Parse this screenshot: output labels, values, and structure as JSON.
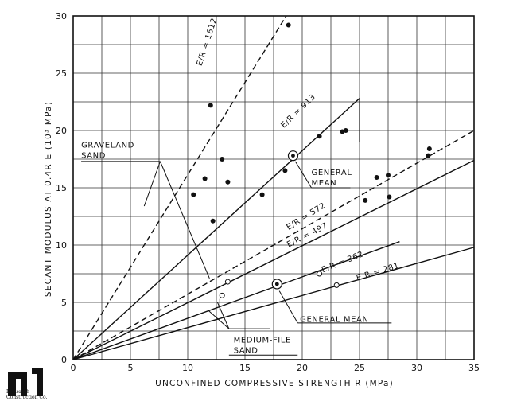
{
  "chart_data": {
    "type": "scatter",
    "xlabel": "UNCONFINED COMPRESSIVE STRENGTH R (MPa)",
    "ylabel": "SECANT MODULUS AT 0.4R E (10³ MPa)",
    "xlim": [
      0,
      35
    ],
    "ylim": [
      0,
      30
    ],
    "xticks": [
      "0",
      "5",
      "10",
      "15",
      "20",
      "25",
      "30",
      "35"
    ],
    "yticks": [
      "0",
      "5",
      "10",
      "15",
      "20",
      "25",
      "30"
    ],
    "grid": true,
    "series": [
      {
        "name": "GRAVELAND SAND",
        "marker": "filled",
        "points": [
          [
            10.5,
            14.4
          ],
          [
            11.5,
            15.8
          ],
          [
            12.0,
            22.2
          ],
          [
            12.2,
            12.1
          ],
          [
            13.0,
            17.5
          ],
          [
            13.5,
            15.5
          ],
          [
            16.5,
            14.4
          ],
          [
            18.5,
            16.5
          ],
          [
            18.8,
            29.2
          ],
          [
            21.5,
            19.5
          ],
          [
            23.5,
            19.9
          ],
          [
            23.8,
            20.0
          ],
          [
            25.5,
            13.9
          ],
          [
            26.5,
            15.9
          ],
          [
            27.5,
            16.1
          ],
          [
            27.6,
            14.2
          ],
          [
            31.0,
            17.8
          ],
          [
            31.1,
            18.4
          ]
        ]
      },
      {
        "name": "MEDIUM-FINE SAND",
        "marker": "open",
        "points": [
          [
            13.0,
            5.6
          ],
          [
            13.5,
            6.8
          ],
          [
            21.5,
            7.5
          ],
          [
            23.0,
            6.5
          ]
        ]
      }
    ],
    "mean_points": [
      {
        "x": 19.2,
        "y": 17.8,
        "label": "GENERAL MEAN"
      },
      {
        "x": 17.8,
        "y": 6.6,
        "label": "GENERAL MEAN"
      }
    ],
    "lines": [
      {
        "label": "E/R = 1612",
        "dash": true,
        "end": [
          18.6,
          30
        ]
      },
      {
        "label": "E/R = 913",
        "dash": false,
        "end": [
          25.0,
          22.8
        ]
      },
      {
        "label": "E/R = 572",
        "dash": true,
        "end": [
          35.0,
          20.0
        ]
      },
      {
        "label": "E/R = 497",
        "dash": false,
        "end": [
          35.0,
          17.4
        ]
      },
      {
        "label": "E/R = 362",
        "dash": false,
        "end": [
          28.5,
          10.3
        ]
      },
      {
        "label": "E/R = 281",
        "dash": false,
        "end": [
          35.0,
          9.8
        ]
      }
    ],
    "annotations": [
      {
        "text": "GRAVELAND",
        "x": 0.7,
        "y": 18.5
      },
      {
        "text": "SAND",
        "x": 0.7,
        "y": 17.6
      },
      {
        "text": "GENERAL",
        "x": 20.8,
        "y": 16.1
      },
      {
        "text": "MEAN",
        "x": 20.8,
        "y": 15.2
      },
      {
        "text": "GENERAL MEAN",
        "x": 19.8,
        "y": 3.3
      },
      {
        "text": "MEDIUM-FILE",
        "x": 14.0,
        "y": 1.5
      },
      {
        "text": "SAND",
        "x": 14.0,
        "y": 0.6
      }
    ]
  },
  "logo": {
    "text": "Intasarch Construction Co."
  }
}
